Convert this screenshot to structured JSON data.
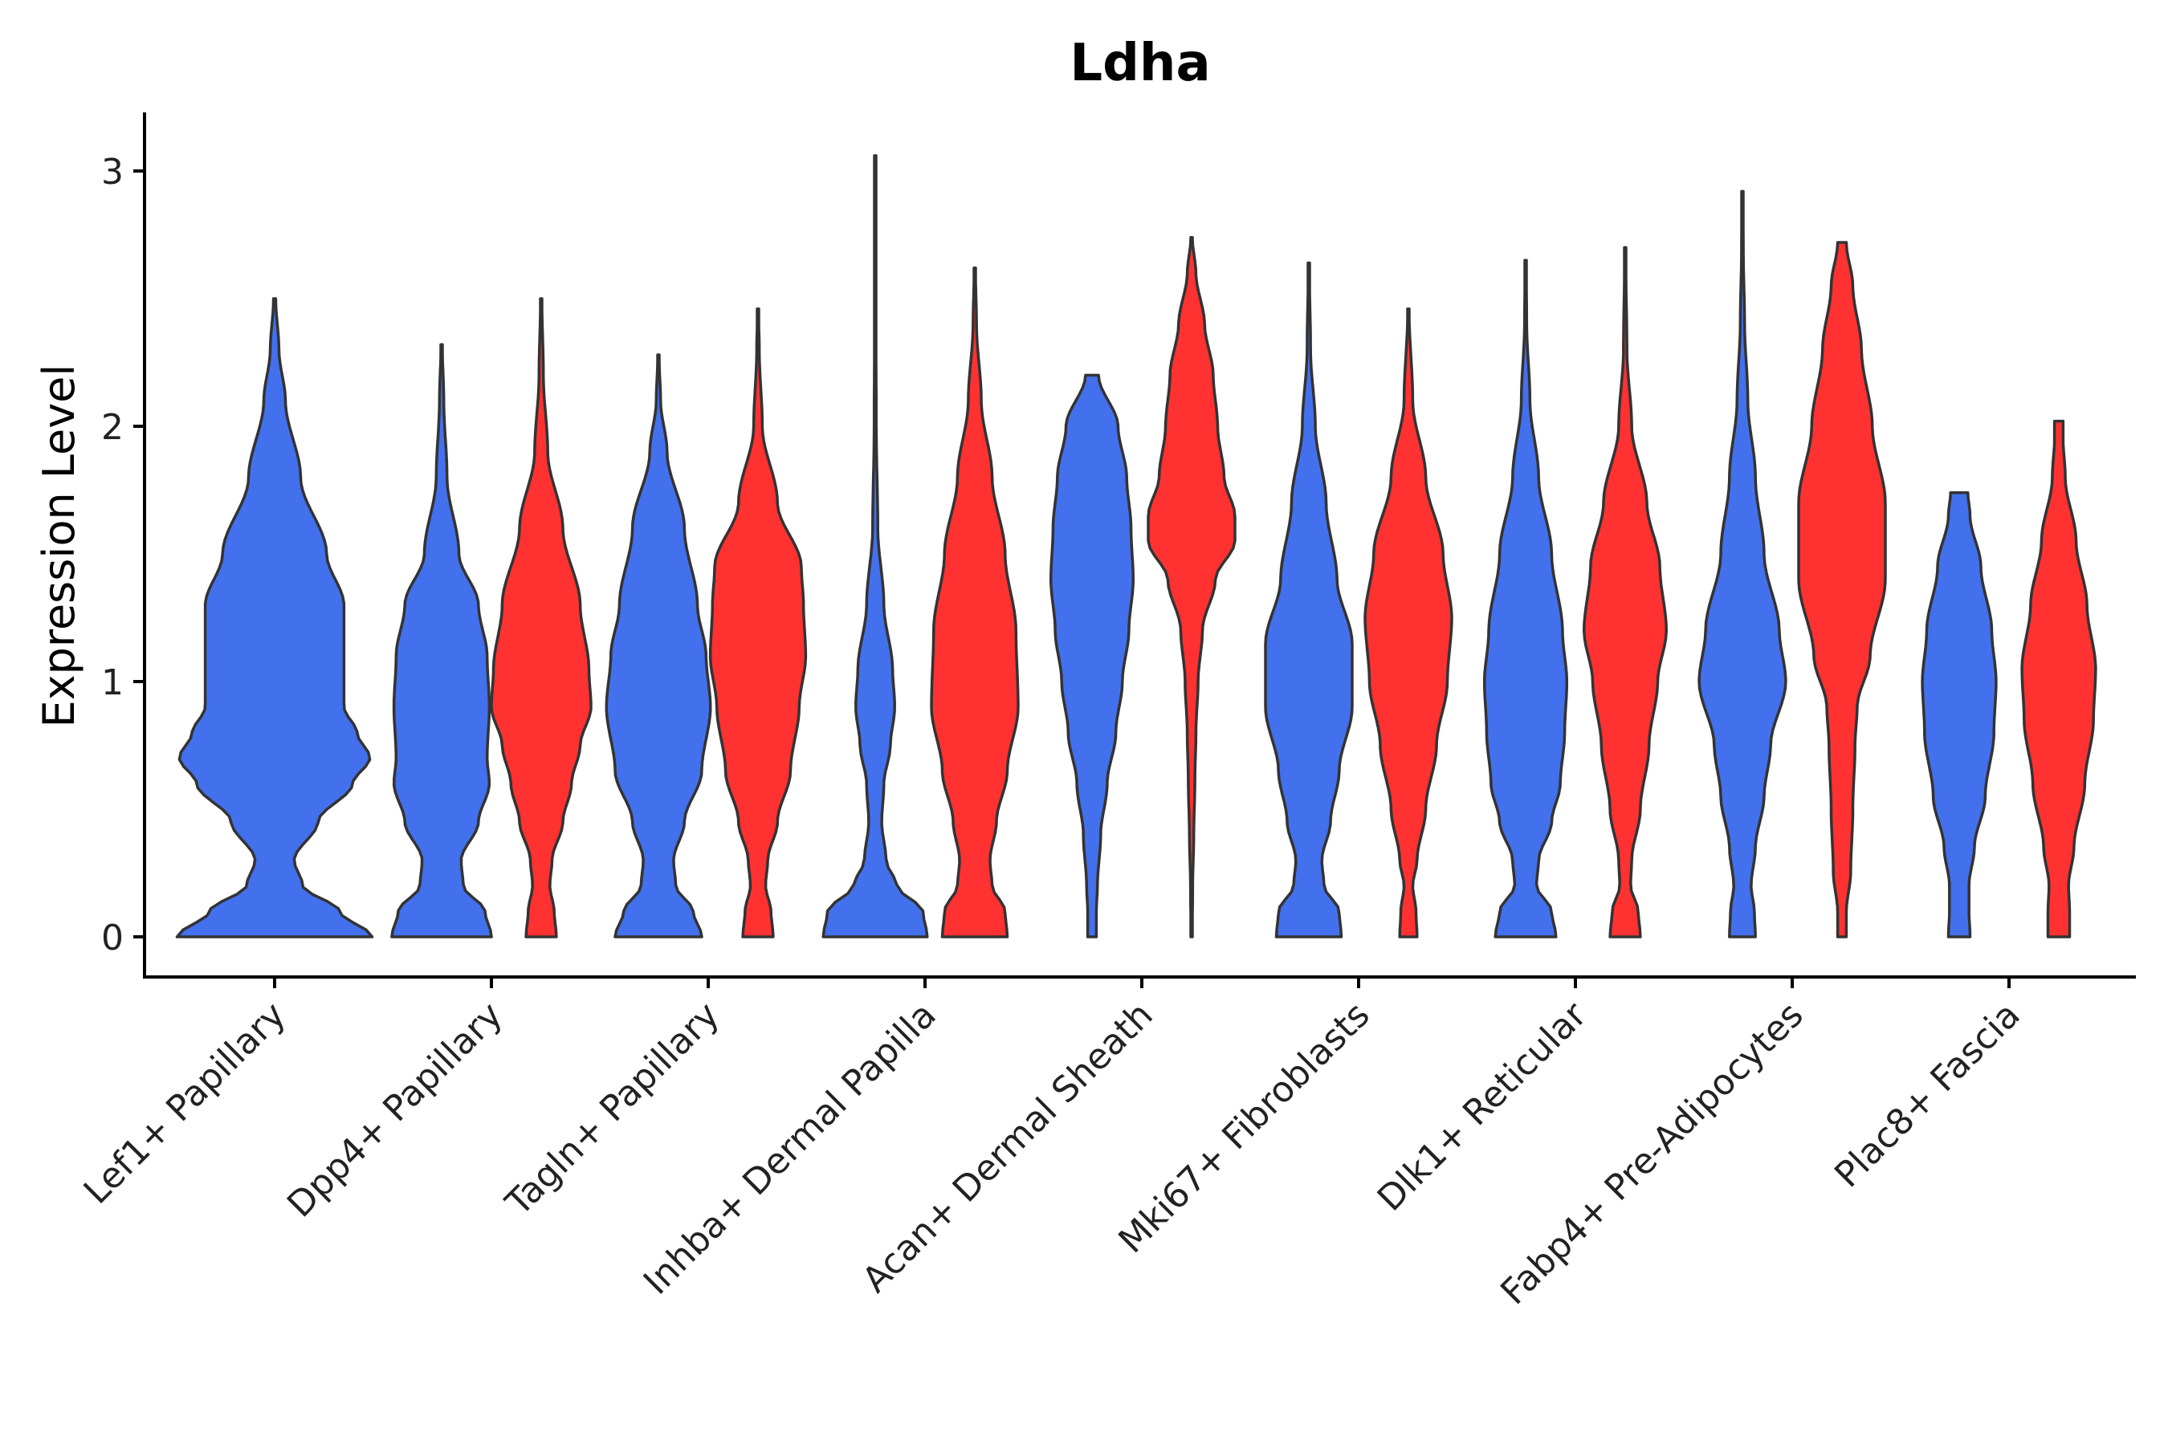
{
  "chart_data": {
    "type": "violin",
    "title": "Ldha",
    "xlabel": "",
    "ylabel": "Expression Level",
    "ylim": [
      -0.15,
      3.2
    ],
    "yticks": [
      0,
      1,
      2,
      3
    ],
    "grid": false,
    "legend": "none",
    "colors": {
      "group1": "#4370EC",
      "group2": "#FF3131",
      "outline": "#333333"
    },
    "categories": [
      "Lef1+ Papillary",
      "Dpp4+ Papillary",
      "Tagln+ Papillary",
      "Inhba+ Dermal Papilla",
      "Acan+ Dermal Sheath",
      "Mki67+ Fibroblasts",
      "Dlk1+ Reticular",
      "Fabp4+ Pre-Adipocytes",
      "Plac8+ Fascia"
    ],
    "violins": [
      {
        "category": "Lef1+ Papillary",
        "group": "group1",
        "offset": 0,
        "max": 2.5,
        "profile": [
          [
            0,
            0.45
          ],
          [
            0.1,
            0.3
          ],
          [
            0.2,
            0.13
          ],
          [
            0.3,
            0.09
          ],
          [
            0.45,
            0.2
          ],
          [
            0.6,
            0.36
          ],
          [
            0.7,
            0.44
          ],
          [
            0.8,
            0.38
          ],
          [
            0.9,
            0.32
          ],
          [
            1.1,
            0.32
          ],
          [
            1.3,
            0.32
          ],
          [
            1.5,
            0.24
          ],
          [
            1.8,
            0.12
          ],
          [
            2.1,
            0.05
          ],
          [
            2.3,
            0.02
          ],
          [
            2.5,
            0.005
          ]
        ]
      },
      {
        "category": "Dpp4+ Papillary",
        "group": "group1",
        "offset": -1,
        "max": 2.32,
        "profile": [
          [
            0,
            0.23
          ],
          [
            0.1,
            0.2
          ],
          [
            0.2,
            0.1
          ],
          [
            0.3,
            0.09
          ],
          [
            0.45,
            0.17
          ],
          [
            0.6,
            0.22
          ],
          [
            0.7,
            0.21
          ],
          [
            0.9,
            0.22
          ],
          [
            1.1,
            0.21
          ],
          [
            1.3,
            0.17
          ],
          [
            1.5,
            0.08
          ],
          [
            1.8,
            0.025
          ],
          [
            2.1,
            0.01
          ],
          [
            2.32,
            0.003
          ]
        ]
      },
      {
        "category": "Dpp4+ Papillary",
        "group": "group2",
        "offset": 1,
        "max": 2.5,
        "profile": [
          [
            0,
            0.07
          ],
          [
            0.1,
            0.06
          ],
          [
            0.2,
            0.04
          ],
          [
            0.3,
            0.05
          ],
          [
            0.45,
            0.1
          ],
          [
            0.6,
            0.14
          ],
          [
            0.75,
            0.18
          ],
          [
            0.9,
            0.23
          ],
          [
            1.05,
            0.22
          ],
          [
            1.3,
            0.18
          ],
          [
            1.6,
            0.1
          ],
          [
            1.9,
            0.03
          ],
          [
            2.2,
            0.01
          ],
          [
            2.5,
            0.003
          ]
        ]
      },
      {
        "category": "Tagln+ Papillary",
        "group": "group1",
        "offset": -1,
        "max": 2.28,
        "profile": [
          [
            0,
            0.2
          ],
          [
            0.1,
            0.16
          ],
          [
            0.2,
            0.08
          ],
          [
            0.3,
            0.07
          ],
          [
            0.45,
            0.12
          ],
          [
            0.65,
            0.2
          ],
          [
            0.9,
            0.24
          ],
          [
            1.1,
            0.22
          ],
          [
            1.3,
            0.18
          ],
          [
            1.6,
            0.12
          ],
          [
            1.9,
            0.04
          ],
          [
            2.1,
            0.01
          ],
          [
            2.28,
            0.003
          ]
        ]
      },
      {
        "category": "Tagln+ Papillary",
        "group": "group2",
        "offset": 1,
        "max": 2.46,
        "profile": [
          [
            0,
            0.07
          ],
          [
            0.1,
            0.06
          ],
          [
            0.2,
            0.035
          ],
          [
            0.3,
            0.045
          ],
          [
            0.45,
            0.09
          ],
          [
            0.65,
            0.15
          ],
          [
            0.9,
            0.19
          ],
          [
            1.1,
            0.22
          ],
          [
            1.3,
            0.21
          ],
          [
            1.45,
            0.2
          ],
          [
            1.7,
            0.09
          ],
          [
            2.0,
            0.02
          ],
          [
            2.3,
            0.006
          ],
          [
            2.46,
            0.002
          ]
        ]
      },
      {
        "category": "Inhba+ Dermal Papilla",
        "group": "group1",
        "offset": -1,
        "max": 3.06,
        "profile": [
          [
            0,
            0.24
          ],
          [
            0.1,
            0.22
          ],
          [
            0.2,
            0.1
          ],
          [
            0.3,
            0.05
          ],
          [
            0.45,
            0.03
          ],
          [
            0.6,
            0.04
          ],
          [
            0.75,
            0.07
          ],
          [
            0.9,
            0.09
          ],
          [
            1.05,
            0.08
          ],
          [
            1.3,
            0.04
          ],
          [
            1.6,
            0.012
          ],
          [
            2.0,
            0.005
          ],
          [
            2.4,
            0.003
          ],
          [
            2.8,
            0.002
          ],
          [
            3.06,
            0.001
          ]
        ]
      },
      {
        "category": "Inhba+ Dermal Papilla",
        "group": "group2",
        "offset": 1,
        "max": 2.62,
        "profile": [
          [
            0,
            0.15
          ],
          [
            0.1,
            0.14
          ],
          [
            0.2,
            0.08
          ],
          [
            0.3,
            0.07
          ],
          [
            0.45,
            0.1
          ],
          [
            0.65,
            0.15
          ],
          [
            0.9,
            0.2
          ],
          [
            1.2,
            0.19
          ],
          [
            1.5,
            0.14
          ],
          [
            1.8,
            0.08
          ],
          [
            2.1,
            0.03
          ],
          [
            2.4,
            0.008
          ],
          [
            2.62,
            0.003
          ]
        ]
      },
      {
        "category": "Acan+ Dermal Sheath",
        "group": "group1",
        "offset": -1,
        "max": 2.2,
        "profile": [
          [
            0,
            0.02
          ],
          [
            0.1,
            0.02
          ],
          [
            0.2,
            0.025
          ],
          [
            0.4,
            0.04
          ],
          [
            0.6,
            0.07
          ],
          [
            0.8,
            0.11
          ],
          [
            1.0,
            0.14
          ],
          [
            1.2,
            0.17
          ],
          [
            1.4,
            0.19
          ],
          [
            1.6,
            0.18
          ],
          [
            1.8,
            0.16
          ],
          [
            2.0,
            0.12
          ],
          [
            2.2,
            0.03
          ]
        ]
      },
      {
        "category": "Acan+ Dermal Sheath",
        "group": "group2",
        "offset": 1,
        "max": 2.74,
        "profile": [
          [
            0,
            0.003
          ],
          [
            0.2,
            0.005
          ],
          [
            0.4,
            0.01
          ],
          [
            0.6,
            0.015
          ],
          [
            0.8,
            0.02
          ],
          [
            1.0,
            0.03
          ],
          [
            1.2,
            0.05
          ],
          [
            1.4,
            0.11
          ],
          [
            1.55,
            0.2
          ],
          [
            1.65,
            0.2
          ],
          [
            1.8,
            0.15
          ],
          [
            2.0,
            0.12
          ],
          [
            2.2,
            0.1
          ],
          [
            2.4,
            0.06
          ],
          [
            2.6,
            0.02
          ],
          [
            2.74,
            0.003
          ]
        ]
      },
      {
        "category": "Mki67+ Fibroblasts",
        "group": "group1",
        "offset": -1,
        "max": 2.64,
        "profile": [
          [
            0,
            0.15
          ],
          [
            0.1,
            0.14
          ],
          [
            0.2,
            0.07
          ],
          [
            0.3,
            0.06
          ],
          [
            0.45,
            0.1
          ],
          [
            0.65,
            0.14
          ],
          [
            0.9,
            0.2
          ],
          [
            1.15,
            0.2
          ],
          [
            1.4,
            0.13
          ],
          [
            1.7,
            0.08
          ],
          [
            2.0,
            0.03
          ],
          [
            2.3,
            0.008
          ],
          [
            2.64,
            0.002
          ]
        ]
      },
      {
        "category": "Mki67+ Fibroblasts",
        "group": "group2",
        "offset": 1,
        "max": 2.46,
        "profile": [
          [
            0,
            0.04
          ],
          [
            0.1,
            0.035
          ],
          [
            0.2,
            0.02
          ],
          [
            0.3,
            0.04
          ],
          [
            0.5,
            0.08
          ],
          [
            0.75,
            0.13
          ],
          [
            1.0,
            0.18
          ],
          [
            1.25,
            0.2
          ],
          [
            1.5,
            0.16
          ],
          [
            1.8,
            0.08
          ],
          [
            2.1,
            0.02
          ],
          [
            2.46,
            0.003
          ]
        ]
      },
      {
        "category": "Dlk1+ Reticular",
        "group": "group1",
        "offset": -1,
        "max": 2.65,
        "profile": [
          [
            0,
            0.14
          ],
          [
            0.1,
            0.12
          ],
          [
            0.2,
            0.05
          ],
          [
            0.3,
            0.06
          ],
          [
            0.45,
            0.12
          ],
          [
            0.6,
            0.16
          ],
          [
            0.8,
            0.18
          ],
          [
            1.0,
            0.19
          ],
          [
            1.2,
            0.17
          ],
          [
            1.5,
            0.12
          ],
          [
            1.8,
            0.06
          ],
          [
            2.1,
            0.02
          ],
          [
            2.4,
            0.005
          ],
          [
            2.65,
            0.002
          ]
        ]
      },
      {
        "category": "Dlk1+ Reticular",
        "group": "group2",
        "offset": 1,
        "max": 2.7,
        "profile": [
          [
            0,
            0.07
          ],
          [
            0.1,
            0.06
          ],
          [
            0.2,
            0.025
          ],
          [
            0.3,
            0.03
          ],
          [
            0.5,
            0.07
          ],
          [
            0.75,
            0.11
          ],
          [
            1.0,
            0.15
          ],
          [
            1.2,
            0.19
          ],
          [
            1.45,
            0.16
          ],
          [
            1.7,
            0.1
          ],
          [
            2.0,
            0.03
          ],
          [
            2.3,
            0.008
          ],
          [
            2.7,
            0.002
          ]
        ]
      },
      {
        "category": "Fabp4+ Pre-Adipocytes",
        "group": "group1",
        "offset": -1,
        "max": 2.92,
        "profile": [
          [
            0,
            0.06
          ],
          [
            0.1,
            0.055
          ],
          [
            0.2,
            0.04
          ],
          [
            0.35,
            0.06
          ],
          [
            0.55,
            0.1
          ],
          [
            0.75,
            0.13
          ],
          [
            1.0,
            0.2
          ],
          [
            1.2,
            0.17
          ],
          [
            1.5,
            0.1
          ],
          [
            1.8,
            0.06
          ],
          [
            2.1,
            0.025
          ],
          [
            2.4,
            0.01
          ],
          [
            2.7,
            0.004
          ],
          [
            2.92,
            0.002
          ]
        ]
      },
      {
        "category": "Fabp4+ Pre-Adipocytes",
        "group": "group2",
        "offset": 1,
        "max": 2.72,
        "profile": [
          [
            0,
            0.02
          ],
          [
            0.1,
            0.02
          ],
          [
            0.25,
            0.04
          ],
          [
            0.5,
            0.05
          ],
          [
            0.75,
            0.06
          ],
          [
            0.9,
            0.07
          ],
          [
            1.1,
            0.13
          ],
          [
            1.4,
            0.2
          ],
          [
            1.7,
            0.2
          ],
          [
            2.0,
            0.14
          ],
          [
            2.3,
            0.09
          ],
          [
            2.55,
            0.05
          ],
          [
            2.72,
            0.02
          ]
        ]
      },
      {
        "category": "Plac8+ Fascia",
        "group": "group1",
        "offset": -1,
        "max": 1.74,
        "profile": [
          [
            0,
            0.05
          ],
          [
            0.1,
            0.045
          ],
          [
            0.2,
            0.045
          ],
          [
            0.35,
            0.07
          ],
          [
            0.55,
            0.12
          ],
          [
            0.8,
            0.16
          ],
          [
            1.0,
            0.17
          ],
          [
            1.2,
            0.15
          ],
          [
            1.45,
            0.1
          ],
          [
            1.65,
            0.05
          ],
          [
            1.74,
            0.04
          ]
        ]
      },
      {
        "category": "Plac8+ Fascia",
        "group": "group2",
        "offset": 1,
        "max": 2.02,
        "profile": [
          [
            0,
            0.05
          ],
          [
            0.1,
            0.05
          ],
          [
            0.2,
            0.045
          ],
          [
            0.35,
            0.07
          ],
          [
            0.6,
            0.12
          ],
          [
            0.85,
            0.16
          ],
          [
            1.05,
            0.17
          ],
          [
            1.3,
            0.13
          ],
          [
            1.55,
            0.08
          ],
          [
            1.8,
            0.03
          ],
          [
            1.95,
            0.02
          ],
          [
            2.02,
            0.02
          ]
        ]
      }
    ]
  }
}
